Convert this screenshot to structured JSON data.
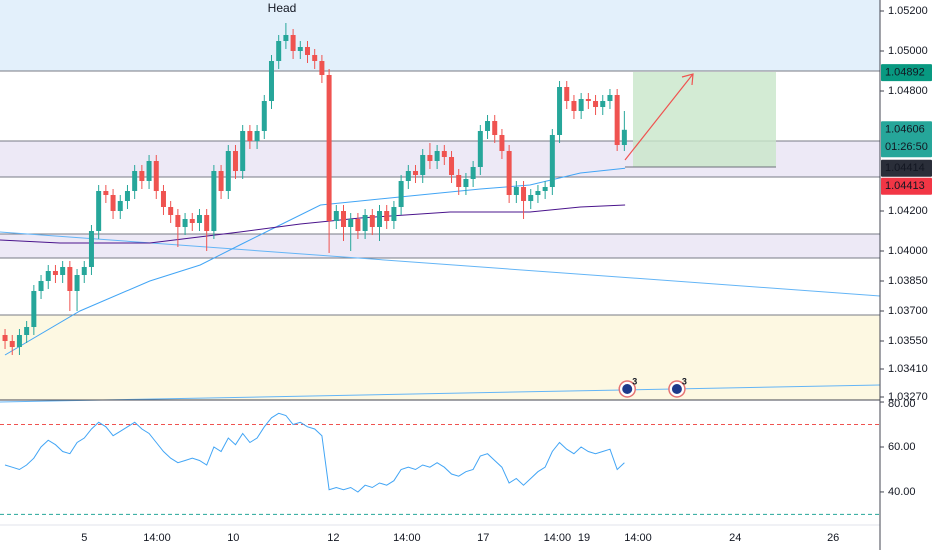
{
  "chart_data": [
    {
      "type": "candlestick",
      "annotation": "Head",
      "annotation_color": "#9c27b0",
      "up_color": "#26a69a",
      "down_color": "#ef5350",
      "xlim": [
        -0.7,
        121.5
      ],
      "ylim": [
        1.03255,
        1.05255
      ],
      "xticks": [
        {
          "value": 11.0,
          "label": "5"
        },
        {
          "value": 21.1,
          "label": "14:00"
        },
        {
          "value": 31.7,
          "label": "10"
        },
        {
          "value": 45.6,
          "label": "12"
        },
        {
          "value": 55.8,
          "label": "14:00"
        },
        {
          "value": 66.4,
          "label": "17"
        },
        {
          "value": 76.7,
          "label": "14:00"
        },
        {
          "value": 80.4,
          "label": "19"
        },
        {
          "value": 87.9,
          "label": "14:00"
        },
        {
          "value": 101.4,
          "label": "24"
        },
        {
          "value": 115.0,
          "label": "26"
        }
      ],
      "yticks": [
        {
          "value": 1.052,
          "label": "1.05200"
        },
        {
          "value": 1.05,
          "label": "1.05000"
        },
        {
          "value": 1.048,
          "label": "1.04800"
        },
        {
          "value": 1.042,
          "label": "1.04200"
        },
        {
          "value": 1.04,
          "label": "1.04000"
        },
        {
          "value": 1.0385,
          "label": "1.03850"
        },
        {
          "value": 1.037,
          "label": "1.03700"
        },
        {
          "value": 1.0355,
          "label": "1.03550"
        },
        {
          "value": 1.0341,
          "label": "1.03410"
        },
        {
          "value": 1.0327,
          "label": "1.03270"
        }
      ],
      "open": [
        1.0358,
        1.0355,
        1.0352,
        1.0358,
        1.0362,
        1.038,
        1.0385,
        1.039,
        1.0388,
        1.0392,
        1.038,
        1.0388,
        1.0392,
        1.041,
        1.043,
        1.0428,
        1.042,
        1.0425,
        1.043,
        1.044,
        1.0435,
        1.0445,
        1.043,
        1.0422,
        1.0418,
        1.0412,
        1.0416,
        1.0414,
        1.0418,
        1.041,
        1.044,
        1.043,
        1.045,
        1.044,
        1.046,
        1.0455,
        1.046,
        1.0475,
        1.0495,
        1.0505,
        1.0508,
        1.05,
        1.0502,
        1.0498,
        1.0495,
        1.0488,
        1.0415,
        1.042,
        1.0412,
        1.0416,
        1.041,
        1.0418,
        1.0412,
        1.042,
        1.0415,
        1.0422,
        1.0435,
        1.044,
        1.0438,
        1.0448,
        1.0445,
        1.045,
        1.0447,
        1.0438,
        1.0432,
        1.0436,
        1.0442,
        1.046,
        1.0465,
        1.0458,
        1.045,
        1.0428,
        1.0432,
        1.0425,
        1.0428,
        1.043,
        1.0432,
        1.0458,
        1.0482,
        1.0475,
        1.047,
        1.0476,
        1.0475,
        1.0472,
        1.0475,
        1.0478,
        1.0453
      ],
      "high": [
        1.0361,
        1.0358,
        1.0361,
        1.0365,
        1.0383,
        1.0388,
        1.0393,
        1.0393,
        1.0395,
        1.0395,
        1.0391,
        1.0395,
        1.0413,
        1.0433,
        1.0433,
        1.0431,
        1.0428,
        1.0433,
        1.0443,
        1.0443,
        1.0448,
        1.0448,
        1.0433,
        1.0425,
        1.0421,
        1.0419,
        1.0419,
        1.0421,
        1.0421,
        1.0443,
        1.0443,
        1.0453,
        1.0453,
        1.0463,
        1.0463,
        1.0463,
        1.0478,
        1.0498,
        1.0508,
        1.0514,
        1.0511,
        1.0505,
        1.0505,
        1.0501,
        1.0498,
        1.0491,
        1.0423,
        1.0423,
        1.0419,
        1.0419,
        1.0421,
        1.0421,
        1.0423,
        1.0423,
        1.0425,
        1.0438,
        1.0443,
        1.0443,
        1.0451,
        1.0454,
        1.0453,
        1.0453,
        1.045,
        1.0441,
        1.0439,
        1.0445,
        1.0463,
        1.0468,
        1.0468,
        1.0461,
        1.0453,
        1.0435,
        1.0435,
        1.0431,
        1.0433,
        1.0435,
        1.0461,
        1.0485,
        1.0485,
        1.0478,
        1.0479,
        1.0479,
        1.0478,
        1.0478,
        1.0481,
        1.0481,
        1.047
      ],
      "low": [
        1.0351,
        1.0348,
        1.0348,
        1.0354,
        1.0358,
        1.0376,
        1.0381,
        1.0384,
        1.0384,
        1.037,
        1.037,
        1.0384,
        1.0388,
        1.0406,
        1.0424,
        1.0416,
        1.0416,
        1.0421,
        1.0426,
        1.0431,
        1.0431,
        1.0426,
        1.0418,
        1.0414,
        1.0402,
        1.0408,
        1.041,
        1.041,
        1.04,
        1.0406,
        1.0426,
        1.0426,
        1.0436,
        1.0436,
        1.0451,
        1.0451,
        1.0456,
        1.0471,
        1.0491,
        1.0501,
        1.0496,
        1.0496,
        1.0494,
        1.0491,
        1.0484,
        1.0399,
        1.0411,
        1.0405,
        1.04,
        1.0406,
        1.0406,
        1.0408,
        1.0405,
        1.0411,
        1.0411,
        1.0418,
        1.0431,
        1.0434,
        1.0434,
        1.0441,
        1.0441,
        1.0443,
        1.0434,
        1.0428,
        1.0428,
        1.0432,
        1.0438,
        1.0456,
        1.0454,
        1.0446,
        1.0424,
        1.0424,
        1.0416,
        1.0421,
        1.0424,
        1.0426,
        1.0428,
        1.0454,
        1.0471,
        1.0466,
        1.0466,
        1.0471,
        1.0468,
        1.0468,
        1.0471,
        1.045,
        1.045
      ],
      "close": [
        1.0355,
        1.0352,
        1.0358,
        1.0362,
        1.038,
        1.0385,
        1.039,
        1.0388,
        1.0392,
        1.038,
        1.0388,
        1.0392,
        1.041,
        1.043,
        1.0428,
        1.042,
        1.0425,
        1.043,
        1.044,
        1.0435,
        1.0445,
        1.043,
        1.0422,
        1.0418,
        1.0412,
        1.0416,
        1.0414,
        1.0418,
        1.041,
        1.044,
        1.043,
        1.045,
        1.044,
        1.046,
        1.0455,
        1.046,
        1.0475,
        1.0495,
        1.0505,
        1.0508,
        1.05,
        1.0502,
        1.0498,
        1.0495,
        1.0488,
        1.0415,
        1.042,
        1.0412,
        1.0416,
        1.041,
        1.0418,
        1.0412,
        1.042,
        1.0415,
        1.0422,
        1.0435,
        1.044,
        1.0438,
        1.0448,
        1.0445,
        1.045,
        1.0447,
        1.0438,
        1.0432,
        1.0436,
        1.0442,
        1.046,
        1.0465,
        1.0458,
        1.045,
        1.0428,
        1.0432,
        1.0425,
        1.0428,
        1.043,
        1.0432,
        1.0458,
        1.0482,
        1.0475,
        1.047,
        1.0476,
        1.0475,
        1.0472,
        1.0475,
        1.0478,
        1.0453,
        1.04606
      ],
      "lines": [
        {
          "color": "#42a5f5",
          "x": [
            0,
            10.4,
            20.1,
            27.1,
            32.6,
            38.2,
            43.8,
            49.3,
            57.6,
            66,
            72.9,
            79.9,
            86.1
          ],
          "values": [
            1.0348,
            1.037,
            1.0385,
            1.0393,
            1.0403,
            1.0413,
            1.0423,
            1.0425,
            1.0428,
            1.0431,
            1.0433,
            1.0439,
            1.04414
          ]
        },
        {
          "color": "#4a148c",
          "x": [
            -0.7,
            7.6,
            20.1,
            32.6,
            41,
            49.3,
            61.8,
            72.9,
            79.9,
            86.1
          ],
          "values": [
            1.04055,
            1.0404,
            1.0404,
            1.04095,
            1.04135,
            1.04165,
            1.04195,
            1.04195,
            1.0422,
            1.0423
          ]
        }
      ],
      "price_labels": [
        {
          "value": 1.04892,
          "label": "1.04892",
          "color": "#089981"
        },
        {
          "value": 1.04606,
          "label": "1.04606",
          "sub": "01:26:50",
          "color": "#26a69a"
        },
        {
          "value": 1.04414,
          "label": "1.04414",
          "color": "#2a2e39"
        },
        {
          "value": 1.04413,
          "label": "1.04413",
          "color": "#f23645"
        }
      ],
      "events": [
        {
          "x": 86.4,
          "label": "3"
        },
        {
          "x": 93.3,
          "label": "3"
        }
      ]
    },
    {
      "type": "line",
      "color": "#42a5f5",
      "ylim": [
        25.3,
        80.9
      ],
      "yticks": [
        {
          "value": 80,
          "label": "80.00"
        },
        {
          "value": 60,
          "label": "60.00"
        },
        {
          "value": 40,
          "label": "40.00"
        }
      ],
      "levels": [
        {
          "value": 70,
          "color": "#ef5350"
        },
        {
          "value": 30,
          "color": "#26a69a"
        }
      ],
      "values": [
        52,
        51,
        50,
        52,
        55,
        60,
        63,
        61,
        58,
        57,
        62,
        64,
        68,
        71,
        69,
        65,
        67,
        69,
        71,
        68,
        66,
        62,
        58,
        55,
        53,
        54,
        55,
        54,
        52,
        60,
        58,
        64,
        61,
        66,
        62,
        64,
        69,
        73,
        75,
        74,
        70,
        71,
        69,
        68,
        65,
        41,
        42,
        41,
        42,
        40,
        43,
        42,
        44,
        43,
        45,
        50,
        51,
        50,
        52,
        51,
        53,
        51,
        48,
        47,
        49,
        50,
        56,
        57,
        54,
        51,
        44,
        46,
        43,
        46,
        49,
        51,
        58,
        62,
        59,
        57,
        60,
        58,
        57,
        58,
        59,
        50,
        53
      ]
    }
  ]
}
